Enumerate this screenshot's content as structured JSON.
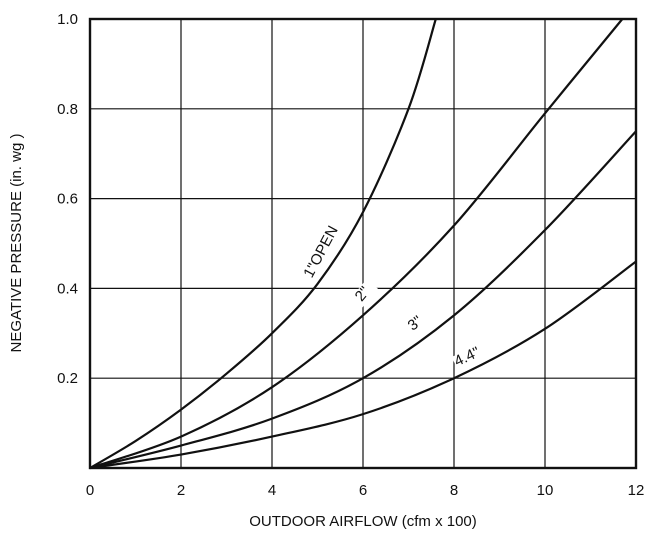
{
  "chart_data": {
    "type": "line",
    "title": "",
    "xlabel": "OUTDOOR AIRFLOW (cfm x 100)",
    "ylabel": "NEGATIVE PRESSURE (in. wg )",
    "xlim": [
      0,
      12
    ],
    "ylim": [
      0,
      1.0
    ],
    "x_ticks": [
      0,
      2,
      4,
      6,
      8,
      10,
      12
    ],
    "y_ticks": [
      0.2,
      0.4,
      0.6,
      0.8,
      1.0
    ],
    "x_tick_labels": [
      "0",
      "2",
      "4",
      "6",
      "8",
      "10",
      "12"
    ],
    "y_tick_labels": [
      "0.2",
      "0.4",
      "0.6",
      "0.8",
      "1.0"
    ],
    "grid": true,
    "series": [
      {
        "name": "1\"OPEN",
        "x": [
          0,
          1,
          2,
          3,
          4,
          5,
          6,
          7,
          7.6
        ],
        "y": [
          0,
          0.06,
          0.13,
          0.21,
          0.3,
          0.41,
          0.57,
          0.8,
          1.0
        ]
      },
      {
        "name": "2\"",
        "x": [
          0,
          2,
          4,
          6,
          8,
          10,
          11.7
        ],
        "y": [
          0,
          0.07,
          0.18,
          0.34,
          0.54,
          0.79,
          1.0
        ]
      },
      {
        "name": "3\"",
        "x": [
          0,
          2,
          4,
          6,
          8,
          10,
          12
        ],
        "y": [
          0,
          0.05,
          0.11,
          0.2,
          0.34,
          0.53,
          0.75
        ]
      },
      {
        "name": "4.4\"",
        "x": [
          0,
          2,
          4,
          6,
          8,
          10,
          12
        ],
        "y": [
          0,
          0.03,
          0.07,
          0.12,
          0.2,
          0.31,
          0.46
        ]
      }
    ]
  }
}
